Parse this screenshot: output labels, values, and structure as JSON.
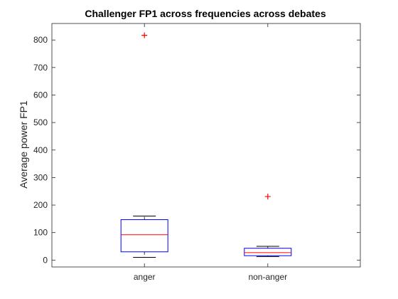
{
  "chart_data": {
    "type": "boxplot",
    "title": "Challenger FP1 across frequencies across debates",
    "xlabel": "",
    "ylabel": "Average power FP1",
    "ylim": [
      -25,
      860
    ],
    "yticks": [
      0,
      100,
      200,
      300,
      400,
      500,
      600,
      700,
      800
    ],
    "grid": false,
    "categories": [
      "anger",
      "non-anger"
    ],
    "boxes": [
      {
        "category": "anger",
        "whisker_low": 10,
        "q1": 30,
        "median": 92,
        "q3": 147,
        "whisker_high": 160,
        "outliers": [
          817
        ]
      },
      {
        "category": "non-anger",
        "whisker_low": 13,
        "q1": 16,
        "median": 27,
        "q3": 43,
        "whisker_high": 50,
        "outliers": [
          231
        ]
      }
    ],
    "colors": {
      "box": "#0000ff",
      "median": "#ff0000",
      "whisker": "#000000",
      "outlier": "#ff0000"
    }
  }
}
